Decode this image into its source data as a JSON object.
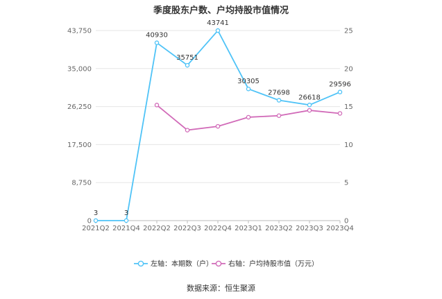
{
  "title": "季度股东户数、户均持股市值情况",
  "source": "数据来源：恒生聚源",
  "chart_data": {
    "type": "line",
    "categories": [
      "2021Q2",
      "2021Q4",
      "2022Q2",
      "2022Q3",
      "2022Q4",
      "2023Q1",
      "2023Q2",
      "2023Q3",
      "2023Q4"
    ],
    "y_left": {
      "ylim": [
        0,
        43750
      ],
      "ticks": [
        0,
        8750,
        17500,
        26250,
        35000,
        43750
      ],
      "tick_labels": [
        "0",
        "8,750",
        "17,500",
        "26,250",
        "35,000",
        "43,750"
      ]
    },
    "y_right": {
      "ylim": [
        0,
        25
      ],
      "ticks": [
        0,
        5,
        10,
        15,
        20,
        25
      ],
      "tick_labels": [
        "0",
        "5",
        "10",
        "15",
        "20",
        "25"
      ]
    },
    "grid": true,
    "legend_position": "bottom",
    "series": [
      {
        "name": "左轴：本期数（户）",
        "axis": "left",
        "color": "#4fc3f7",
        "values": [
          3,
          3,
          40930,
          35751,
          43741,
          30305,
          27698,
          26618,
          29596
        ],
        "labels": [
          "3",
          "3",
          "40930",
          "35751",
          "43741",
          "30305",
          "27698",
          "26618",
          "29596"
        ]
      },
      {
        "name": "右轴：户均持股市值（万元）",
        "axis": "right",
        "color": "#d16ab8",
        "values": [
          null,
          null,
          15.2,
          11.9,
          12.4,
          13.6,
          13.8,
          14.5,
          14.1
        ]
      }
    ]
  }
}
